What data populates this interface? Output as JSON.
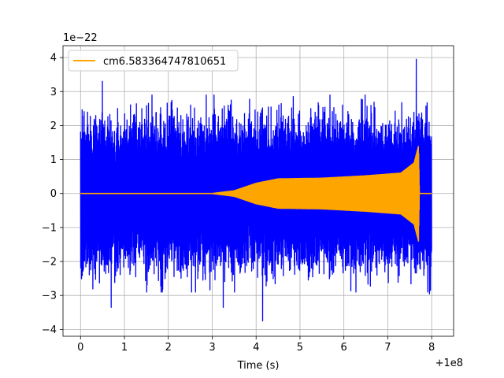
{
  "chart_data": {
    "type": "line",
    "xlabel": "Time (s)",
    "ylabel": "",
    "x_offset_label": "+1e8",
    "y_scale_label": "1e−22",
    "xlim": [
      -0.4,
      8.5
    ],
    "ylim": [
      -4.2,
      4.35
    ],
    "x_ticks": [
      0,
      1,
      2,
      3,
      4,
      5,
      6,
      7,
      8
    ],
    "y_ticks": [
      -4,
      -3,
      -2,
      -1,
      0,
      1,
      2,
      3,
      4
    ],
    "x_tick_labels": [
      "0",
      "1",
      "2",
      "3",
      "4",
      "5",
      "6",
      "7",
      "8"
    ],
    "y_tick_labels": [
      "−4",
      "−3",
      "−2",
      "−1",
      "0",
      "1",
      "2",
      "3",
      "4"
    ],
    "grid": true,
    "legend_position": "top-left",
    "series": [
      {
        "role": "noise",
        "color": "#0000ff",
        "x_range": [
          0,
          8.0
        ],
        "typical_amplitude": 1.6,
        "peaks": [
          {
            "x": 0.5,
            "y": 3.3
          },
          {
            "x": 0.7,
            "y": -3.35
          },
          {
            "x": 3.25,
            "y": -3.35
          },
          {
            "x": 4.15,
            "y": -3.75
          },
          {
            "x": 7.65,
            "y": 3.95
          },
          {
            "x": 7.95,
            "y": -2.95
          }
        ]
      },
      {
        "name": "cm6.583364747810651",
        "role": "signal",
        "color": "#ffa500",
        "envelope": [
          {
            "x": 0.0,
            "y": 0.0
          },
          {
            "x": 3.0,
            "y": 0.0
          },
          {
            "x": 3.5,
            "y": 0.08
          },
          {
            "x": 4.0,
            "y": 0.3
          },
          {
            "x": 4.5,
            "y": 0.43
          },
          {
            "x": 5.5,
            "y": 0.45
          },
          {
            "x": 6.5,
            "y": 0.52
          },
          {
            "x": 7.3,
            "y": 0.6
          },
          {
            "x": 7.6,
            "y": 0.9
          },
          {
            "x": 7.7,
            "y": 1.4
          },
          {
            "x": 7.72,
            "y": 0.0
          },
          {
            "x": 8.0,
            "y": 0.0
          }
        ]
      }
    ]
  }
}
